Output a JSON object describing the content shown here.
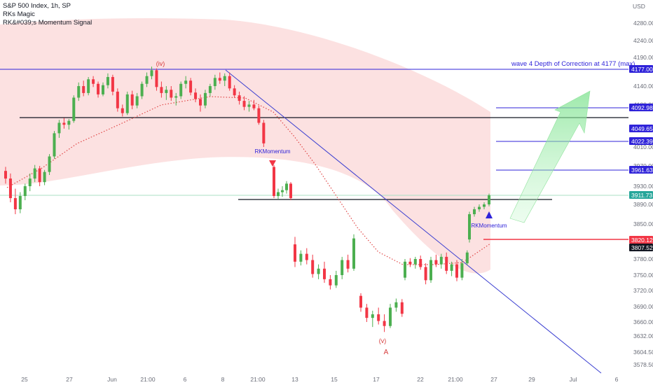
{
  "legend": {
    "title": "S&P 500 Index, 1h, SP",
    "line1": "RKs Magic",
    "line2": "RK&#039;s Momentum Signal"
  },
  "chart_data": {
    "type": "candlestick",
    "currency": "USD",
    "y_ticks": [
      4280,
      4240,
      4190,
      4140,
      4100,
      4010,
      3970,
      3930,
      3890,
      3850,
      3780,
      3750,
      3720,
      3690,
      3660,
      3632,
      3604.5,
      3578.5
    ],
    "y_tick_labels": [
      "4280.00",
      "4240.00",
      "4190.00",
      "4140.00",
      "4100.00",
      "4010.00",
      "3970.00",
      "3930.00",
      "3890.00",
      "3850.00",
      "3780.00",
      "3750.00",
      "3720.00",
      "3690.00",
      "3660.00",
      "3632.00",
      "3604.50",
      "3578.50"
    ],
    "x_tick_labels": [
      "25",
      "27",
      "Jun",
      "21:00",
      "6",
      "8",
      "21:00",
      "13",
      "15",
      "17",
      "22",
      "21:00",
      "27",
      "29",
      "Jul",
      "6"
    ],
    "price_tags": [
      {
        "value": 4177.0,
        "label": "4177.00",
        "color": "#2f23d9"
      },
      {
        "value": 4092.98,
        "label": "4092.98",
        "color": "#2f23d9"
      },
      {
        "value": 4049.65,
        "label": "4049.65",
        "color": "#2f23d9"
      },
      {
        "value": 4022.39,
        "label": "4022.39",
        "color": "#2f23d9"
      },
      {
        "value": 3961.63,
        "label": "3961.63",
        "color": "#2f23d9"
      },
      {
        "value": 3911.73,
        "label": "3911.73",
        "color": "#26a69a"
      },
      {
        "value": 3820.12,
        "label": "3820.12",
        "color": "#f23645"
      },
      {
        "value": 3807.52,
        "label": "3807.52",
        "color": "#131722"
      }
    ],
    "annotations": {
      "wave4_text": "wave 4 Depth of Correction at  4177 (max)",
      "label_iv": "(iv)",
      "label_v": "(v)",
      "label_A": "A",
      "rk_momentum_1": "RKMomentum",
      "rk_momentum_2": "RKMomentum"
    },
    "candles": [
      {
        "t": 0,
        "o": 3960,
        "h": 3968,
        "l": 3935,
        "c": 3945
      },
      {
        "t": 1,
        "o": 3945,
        "h": 3955,
        "l": 3895,
        "c": 3905
      },
      {
        "t": 2,
        "o": 3905,
        "h": 3925,
        "l": 3870,
        "c": 3880
      },
      {
        "t": 3,
        "o": 3880,
        "h": 3918,
        "l": 3872,
        "c": 3910
      },
      {
        "t": 4,
        "o": 3910,
        "h": 3935,
        "l": 3900,
        "c": 3930
      },
      {
        "t": 5,
        "o": 3930,
        "h": 3955,
        "l": 3920,
        "c": 3945
      },
      {
        "t": 6,
        "o": 3945,
        "h": 3972,
        "l": 3938,
        "c": 3965
      },
      {
        "t": 7,
        "o": 3965,
        "h": 3970,
        "l": 3930,
        "c": 3938
      },
      {
        "t": 8,
        "o": 3938,
        "h": 3962,
        "l": 3932,
        "c": 3958
      },
      {
        "t": 9,
        "o": 3958,
        "h": 3995,
        "l": 3952,
        "c": 3990
      },
      {
        "t": 10,
        "o": 3990,
        "h": 4045,
        "l": 3985,
        "c": 4040
      },
      {
        "t": 11,
        "o": 4040,
        "h": 4068,
        "l": 4030,
        "c": 4062
      },
      {
        "t": 12,
        "o": 4062,
        "h": 4072,
        "l": 4050,
        "c": 4058
      },
      {
        "t": 13,
        "o": 4058,
        "h": 4070,
        "l": 4048,
        "c": 4066
      },
      {
        "t": 14,
        "o": 4066,
        "h": 4120,
        "l": 4062,
        "c": 4115
      },
      {
        "t": 15,
        "o": 4115,
        "h": 4148,
        "l": 4108,
        "c": 4140
      },
      {
        "t": 16,
        "o": 4140,
        "h": 4152,
        "l": 4118,
        "c": 4125
      },
      {
        "t": 17,
        "o": 4125,
        "h": 4160,
        "l": 4120,
        "c": 4155
      },
      {
        "t": 18,
        "o": 4155,
        "h": 4162,
        "l": 4138,
        "c": 4145
      },
      {
        "t": 19,
        "o": 4145,
        "h": 4150,
        "l": 4115,
        "c": 4122
      },
      {
        "t": 20,
        "o": 4122,
        "h": 4148,
        "l": 4118,
        "c": 4142
      },
      {
        "t": 21,
        "o": 4142,
        "h": 4168,
        "l": 4135,
        "c": 4160
      },
      {
        "t": 22,
        "o": 4160,
        "h": 4165,
        "l": 4120,
        "c": 4128
      },
      {
        "t": 23,
        "o": 4128,
        "h": 4135,
        "l": 4085,
        "c": 4092
      },
      {
        "t": 24,
        "o": 4092,
        "h": 4100,
        "l": 4075,
        "c": 4082
      },
      {
        "t": 25,
        "o": 4082,
        "h": 4128,
        "l": 4078,
        "c": 4122
      },
      {
        "t": 26,
        "o": 4122,
        "h": 4130,
        "l": 4090,
        "c": 4098
      },
      {
        "t": 27,
        "o": 4098,
        "h": 4125,
        "l": 4092,
        "c": 4118
      },
      {
        "t": 28,
        "o": 4118,
        "h": 4150,
        "l": 4112,
        "c": 4145
      },
      {
        "t": 29,
        "o": 4145,
        "h": 4170,
        "l": 4138,
        "c": 4162
      },
      {
        "t": 30,
        "o": 4162,
        "h": 4180,
        "l": 4155,
        "c": 4175
      },
      {
        "t": 31,
        "o": 4175,
        "h": 4178,
        "l": 4130,
        "c": 4138
      },
      {
        "t": 32,
        "o": 4138,
        "h": 4150,
        "l": 4115,
        "c": 4125
      },
      {
        "t": 33,
        "o": 4125,
        "h": 4140,
        "l": 4110,
        "c": 4132
      },
      {
        "t": 34,
        "o": 4132,
        "h": 4140,
        "l": 4108,
        "c": 4115
      },
      {
        "t": 35,
        "o": 4115,
        "h": 4125,
        "l": 4098,
        "c": 4118
      },
      {
        "t": 36,
        "o": 4118,
        "h": 4150,
        "l": 4112,
        "c": 4145
      },
      {
        "t": 37,
        "o": 4145,
        "h": 4162,
        "l": 4135,
        "c": 4152
      },
      {
        "t": 38,
        "o": 4152,
        "h": 4158,
        "l": 4120,
        "c": 4126
      },
      {
        "t": 39,
        "o": 4126,
        "h": 4135,
        "l": 4105,
        "c": 4112
      },
      {
        "t": 40,
        "o": 4112,
        "h": 4122,
        "l": 4085,
        "c": 4098
      },
      {
        "t": 41,
        "o": 4098,
        "h": 4132,
        "l": 4092,
        "c": 4125
      },
      {
        "t": 42,
        "o": 4125,
        "h": 4145,
        "l": 4118,
        "c": 4140
      },
      {
        "t": 43,
        "o": 4140,
        "h": 4165,
        "l": 4132,
        "c": 4158
      },
      {
        "t": 44,
        "o": 4158,
        "h": 4170,
        "l": 4145,
        "c": 4152
      },
      {
        "t": 45,
        "o": 4152,
        "h": 4168,
        "l": 4140,
        "c": 4162
      },
      {
        "t": 46,
        "o": 4162,
        "h": 4170,
        "l": 4130,
        "c": 4135
      },
      {
        "t": 47,
        "o": 4135,
        "h": 4142,
        "l": 4115,
        "c": 4120
      },
      {
        "t": 48,
        "o": 4120,
        "h": 4128,
        "l": 4100,
        "c": 4108
      },
      {
        "t": 49,
        "o": 4108,
        "h": 4118,
        "l": 4088,
        "c": 4095
      },
      {
        "t": 50,
        "o": 4095,
        "h": 4108,
        "l": 4085,
        "c": 4100
      },
      {
        "t": 51,
        "o": 4100,
        "h": 4110,
        "l": 4088,
        "c": 4092
      },
      {
        "t": 52,
        "o": 4092,
        "h": 4098,
        "l": 4058,
        "c": 4062
      },
      {
        "t": 53,
        "o": 4062,
        "h": 4068,
        "l": 4010,
        "c": 4018
      },
      {
        "t": 54,
        "o": 3968,
        "h": 3972,
        "l": 3905,
        "c": 3910
      },
      {
        "t": 55,
        "o": 3910,
        "h": 3925,
        "l": 3902,
        "c": 3918
      },
      {
        "t": 56,
        "o": 3918,
        "h": 3930,
        "l": 3908,
        "c": 3922
      },
      {
        "t": 57,
        "o": 3922,
        "h": 3940,
        "l": 3915,
        "c": 3935
      },
      {
        "t": 58,
        "o": 3935,
        "h": 3938,
        "l": 3900,
        "c": 3905
      },
      {
        "t": 59,
        "o": 3812,
        "h": 3825,
        "l": 3765,
        "c": 3775
      },
      {
        "t": 60,
        "o": 3775,
        "h": 3800,
        "l": 3768,
        "c": 3792
      },
      {
        "t": 61,
        "o": 3792,
        "h": 3805,
        "l": 3770,
        "c": 3778
      },
      {
        "t": 62,
        "o": 3778,
        "h": 3790,
        "l": 3745,
        "c": 3752
      },
      {
        "t": 63,
        "o": 3752,
        "h": 3770,
        "l": 3742,
        "c": 3762
      },
      {
        "t": 64,
        "o": 3762,
        "h": 3775,
        "l": 3735,
        "c": 3742
      },
      {
        "t": 65,
        "o": 3742,
        "h": 3750,
        "l": 3722,
        "c": 3730
      },
      {
        "t": 66,
        "o": 3730,
        "h": 3758,
        "l": 3725,
        "c": 3750
      },
      {
        "t": 67,
        "o": 3750,
        "h": 3785,
        "l": 3742,
        "c": 3778
      },
      {
        "t": 68,
        "o": 3778,
        "h": 3790,
        "l": 3755,
        "c": 3762
      },
      {
        "t": 69,
        "o": 3762,
        "h": 3830,
        "l": 3758,
        "c": 3822
      },
      {
        "t": 70,
        "o": 3710,
        "h": 3715,
        "l": 3680,
        "c": 3688
      },
      {
        "t": 71,
        "o": 3688,
        "h": 3695,
        "l": 3660,
        "c": 3668
      },
      {
        "t": 72,
        "o": 3668,
        "h": 3682,
        "l": 3650,
        "c": 3675
      },
      {
        "t": 73,
        "o": 3675,
        "h": 3688,
        "l": 3655,
        "c": 3662
      },
      {
        "t": 74,
        "o": 3662,
        "h": 3675,
        "l": 3640,
        "c": 3652
      },
      {
        "t": 75,
        "o": 3652,
        "h": 3695,
        "l": 3648,
        "c": 3688
      },
      {
        "t": 76,
        "o": 3688,
        "h": 3705,
        "l": 3680,
        "c": 3698
      },
      {
        "t": 77,
        "o": 3698,
        "h": 3704,
        "l": 3670,
        "c": 3676
      },
      {
        "t": 78,
        "o": 3745,
        "h": 3780,
        "l": 3740,
        "c": 3775
      },
      {
        "t": 79,
        "o": 3775,
        "h": 3782,
        "l": 3765,
        "c": 3770
      },
      {
        "t": 80,
        "o": 3770,
        "h": 3785,
        "l": 3762,
        "c": 3780
      },
      {
        "t": 81,
        "o": 3780,
        "h": 3788,
        "l": 3760,
        "c": 3765
      },
      {
        "t": 82,
        "o": 3765,
        "h": 3772,
        "l": 3732,
        "c": 3740
      },
      {
        "t": 83,
        "o": 3740,
        "h": 3785,
        "l": 3735,
        "c": 3778
      },
      {
        "t": 84,
        "o": 3778,
        "h": 3790,
        "l": 3765,
        "c": 3770
      },
      {
        "t": 85,
        "o": 3770,
        "h": 3792,
        "l": 3762,
        "c": 3785
      },
      {
        "t": 86,
        "o": 3785,
        "h": 3795,
        "l": 3752,
        "c": 3758
      },
      {
        "t": 87,
        "o": 3758,
        "h": 3775,
        "l": 3748,
        "c": 3770
      },
      {
        "t": 88,
        "o": 3770,
        "h": 3778,
        "l": 3738,
        "c": 3745
      },
      {
        "t": 89,
        "o": 3745,
        "h": 3780,
        "l": 3740,
        "c": 3772
      },
      {
        "t": 90,
        "o": 3772,
        "h": 3800,
        "l": 3768,
        "c": 3795
      },
      {
        "t": 91,
        "o": 3820,
        "h": 3875,
        "l": 3815,
        "c": 3870
      },
      {
        "t": 92,
        "o": 3870,
        "h": 3885,
        "l": 3865,
        "c": 3880
      },
      {
        "t": 93,
        "o": 3880,
        "h": 3890,
        "l": 3875,
        "c": 3885
      },
      {
        "t": 94,
        "o": 3885,
        "h": 3895,
        "l": 3880,
        "c": 3890
      },
      {
        "t": 95,
        "o": 3890,
        "h": 3915,
        "l": 3886,
        "c": 3911.73
      }
    ]
  }
}
